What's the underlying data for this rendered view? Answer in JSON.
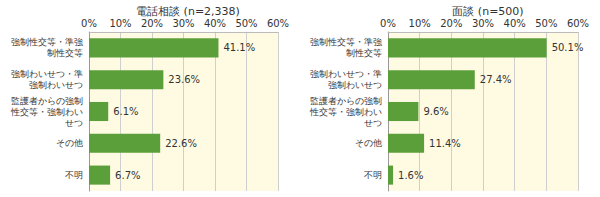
{
  "chart_data": [
    {
      "type": "bar",
      "title": "電話相談 (n=2,338)",
      "orientation": "horizontal",
      "categories": [
        "強制性交等・準強制性交等",
        "強制わいせつ・準強制わいせつ",
        "監護者からの強制性交等・強制わいせつ",
        "その他",
        "不明"
      ],
      "values": [
        41.1,
        23.6,
        6.1,
        22.6,
        6.7
      ],
      "value_labels": [
        "41.1%",
        "23.6%",
        "6.1%",
        "22.6%",
        "6.7%"
      ],
      "data_labels": true,
      "color": "#5b9f3a",
      "xlim": [
        0,
        60
      ],
      "xticks": [
        {
          "value": 0,
          "label": "0%"
        },
        {
          "value": 10,
          "label": "10%"
        },
        {
          "value": 20,
          "label": "20%"
        },
        {
          "value": 30,
          "label": "30%"
        },
        {
          "value": 40,
          "label": "40%"
        },
        {
          "value": 50,
          "label": "50%"
        },
        {
          "value": 60,
          "label": "60%"
        }
      ],
      "grid": true
    },
    {
      "type": "bar",
      "title": "面談 (n=500)",
      "orientation": "horizontal",
      "categories": [
        "強制性交等・準強制性交等",
        "強制わいせつ・準強制わいせつ",
        "監護者からの強制性交等・強制わいせつ",
        "その他",
        "不明"
      ],
      "values": [
        50.1,
        27.4,
        9.6,
        11.4,
        1.6
      ],
      "value_labels": [
        "50.1%",
        "27.4%",
        "9.6%",
        "11.4%",
        "1.6%"
      ],
      "data_labels": true,
      "color": "#5b9f3a",
      "xlim": [
        0,
        60
      ],
      "xticks": [
        {
          "value": 0,
          "label": "0%"
        },
        {
          "value": 10,
          "label": "10%"
        },
        {
          "value": 20,
          "label": "20%"
        },
        {
          "value": 30,
          "label": "30%"
        },
        {
          "value": 40,
          "label": "40%"
        },
        {
          "value": 50,
          "label": "50%"
        },
        {
          "value": 60,
          "label": "60%"
        }
      ],
      "grid": true
    }
  ]
}
